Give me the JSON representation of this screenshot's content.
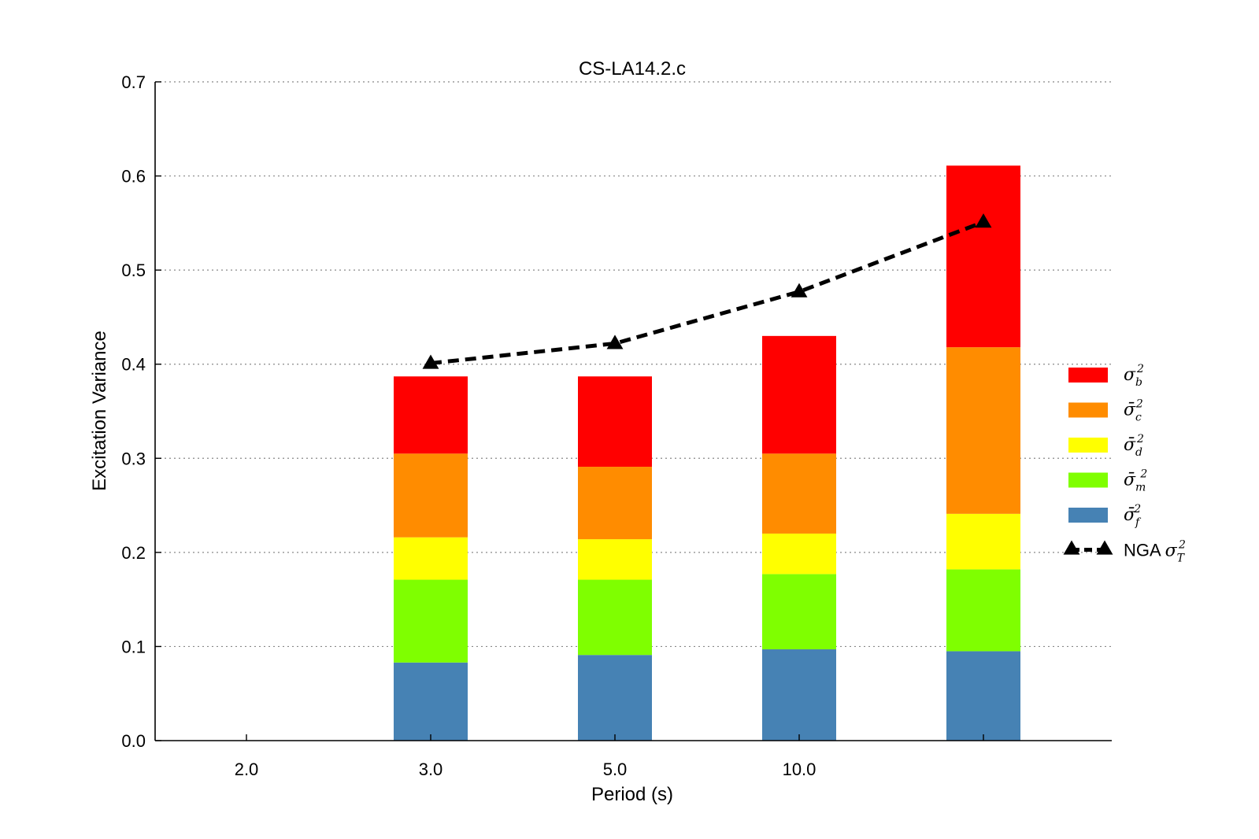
{
  "chart_data": {
    "type": "bar",
    "stacked": true,
    "title": "CS-LA14.2.c",
    "xlabel": "Period (s)",
    "ylabel": "Excitation Variance",
    "ylim": [
      0.0,
      0.7
    ],
    "yticks": [
      "0.0",
      "0.1",
      "0.2",
      "0.3",
      "0.4",
      "0.5",
      "0.6",
      "0.7"
    ],
    "categories": [
      "2.0",
      "3.0",
      "5.0",
      "10.0",
      ""
    ],
    "grid": true,
    "legend_position": "right",
    "series": [
      {
        "name": "σ̄f²",
        "label_main": "σ̄",
        "label_sub": "f",
        "label_sup": "2",
        "color": "#4682b4",
        "values": [
          null,
          0.083,
          0.091,
          0.097,
          0.095
        ]
      },
      {
        "name": "σ̄m²",
        "label_main": "σ̄",
        "label_sub": "m",
        "label_sup": "2",
        "color": "#7fff00",
        "values": [
          null,
          0.088,
          0.08,
          0.08,
          0.087
        ]
      },
      {
        "name": "σ̄d²",
        "label_main": "σ̄",
        "label_sub": "d",
        "label_sup": "2",
        "color": "#ffff00",
        "values": [
          null,
          0.045,
          0.043,
          0.043,
          0.059
        ]
      },
      {
        "name": "σ̄c²",
        "label_main": "σ̄",
        "label_sub": "c",
        "label_sup": "2",
        "color": "#ff8c00",
        "values": [
          null,
          0.089,
          0.077,
          0.085,
          0.177
        ]
      },
      {
        "name": "σ²b",
        "label_main": "σ",
        "label_sub": "b",
        "label_sup": "2",
        "color": "#ff0000",
        "values": [
          null,
          0.082,
          0.096,
          0.125,
          0.193
        ]
      }
    ],
    "line_series": {
      "name": "NGA σT²",
      "label_plain": "NGA ",
      "label_main": "σ",
      "label_sub": "T",
      "label_sup": "2",
      "color": "#000000",
      "marker": "triangle",
      "style": "dashed",
      "values": [
        null,
        0.401,
        0.422,
        0.477,
        0.551
      ]
    },
    "legend_order": [
      4,
      3,
      2,
      1,
      0
    ]
  }
}
